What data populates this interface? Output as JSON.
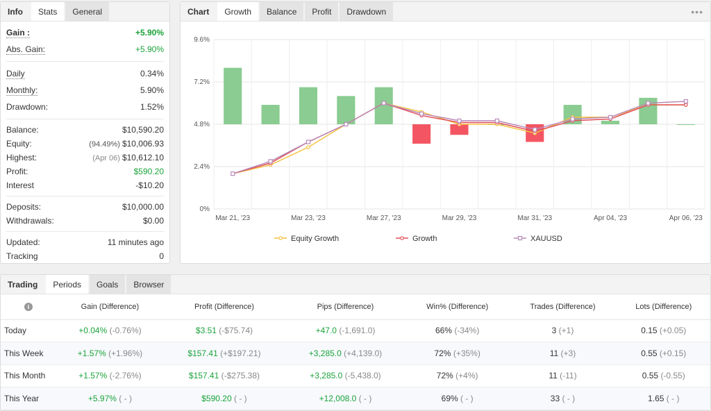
{
  "info_panel": {
    "tabs": [
      "Info",
      "Stats",
      "General"
    ],
    "rows_a": [
      {
        "label": "Gain :",
        "value": "+5.90%"
      },
      {
        "label": "Abs. Gain:",
        "value": "+5.90%"
      }
    ],
    "rows_b": [
      {
        "label": "Daily",
        "value": "0.34%"
      },
      {
        "label": "Monthly:",
        "value": "5.90%"
      },
      {
        "label": "Drawdown:",
        "value": "1.52%"
      }
    ],
    "rows_c": [
      {
        "label": "Balance:",
        "sub": "",
        "value": "$10,590.20"
      },
      {
        "label": "Equity:",
        "sub": "(94.49%)",
        "value": "$10,006.93"
      },
      {
        "label": "Highest:",
        "sub": "(Apr 06)",
        "value": "$10,612.10"
      },
      {
        "label": "Profit:",
        "sub": "",
        "value": "$590.20"
      },
      {
        "label": "Interest",
        "sub": "",
        "value": "-$10.20"
      }
    ],
    "rows_d": [
      {
        "label": "Deposits:",
        "value": "$10,000.00"
      },
      {
        "label": "Withdrawals:",
        "value": "$0.00"
      }
    ],
    "rows_e": [
      {
        "label": "Updated:",
        "value": "11 minutes ago"
      },
      {
        "label": "Tracking",
        "value": "0"
      }
    ]
  },
  "chart_panel": {
    "tabs": [
      "Chart",
      "Growth",
      "Balance",
      "Profit",
      "Drawdown"
    ],
    "more": "•••"
  },
  "chart_data": {
    "type": "line",
    "x": [
      "Mar 21, '23",
      "Mar 22, '23",
      "Mar 23, '23",
      "Mar 24, '23",
      "Mar 27, '23",
      "Mar 28, '23",
      "Mar 29, '23",
      "Mar 30, '23",
      "Mar 31, '23",
      "Apr 03, '23",
      "Apr 04, '23",
      "Apr 05, '23",
      "Apr 06, '23"
    ],
    "x_tick_labels": [
      "Mar 21, '23",
      "Mar 23, '23",
      "Mar 27, '23",
      "Mar 29, '23",
      "Mar 31, '23",
      "Apr 04, '23",
      "Apr 06, '23"
    ],
    "y_tick_labels": [
      "0%",
      "2.4%",
      "4.8%",
      "7.2%",
      "9.6%"
    ],
    "ylim": [
      0,
      9.6
    ],
    "bars": [
      8.0,
      5.9,
      6.9,
      6.4,
      6.9,
      3.7,
      4.2,
      4.8,
      3.8,
      5.9,
      5.0,
      6.3,
      4.8
    ],
    "bars_base": 4.8,
    "series": [
      {
        "name": "Equity Growth",
        "color": "#f5c242",
        "values": [
          2.0,
          2.5,
          3.5,
          4.8,
          6.0,
          5.5,
          4.8,
          4.8,
          4.3,
          5.2,
          5.2,
          5.9,
          5.9
        ]
      },
      {
        "name": "Growth",
        "color": "#e0505a",
        "values": [
          2.0,
          2.6,
          3.8,
          4.8,
          6.0,
          5.3,
          4.9,
          4.9,
          4.4,
          5.0,
          5.1,
          5.9,
          5.9
        ]
      },
      {
        "name": "XAUUSD",
        "color": "#b98ab8",
        "values": [
          2.0,
          2.7,
          3.8,
          4.8,
          6.0,
          5.4,
          5.0,
          5.0,
          4.5,
          5.1,
          5.2,
          6.0,
          6.1
        ]
      }
    ],
    "grid": true,
    "legend": "bottom"
  },
  "trading_panel": {
    "tabs": [
      "Trading",
      "Periods",
      "Goals",
      "Browser"
    ],
    "headers": [
      "Gain (Difference)",
      "Profit (Difference)",
      "Pips (Difference)",
      "Win% (Difference)",
      "Trades (Difference)",
      "Lots (Difference)"
    ],
    "rows": [
      {
        "period": "Today",
        "gain": "+0.04%",
        "gain_d": "(-0.76%)",
        "profit": "$3.51",
        "profit_d": "(-$75.74)",
        "pips": "+47.0",
        "pips_d": "(-1,691.0)",
        "win": "66%",
        "win_d": "(-34%)",
        "trades": "3",
        "trades_d": "(+1)",
        "lots": "0.15",
        "lots_d": "(+0.05)"
      },
      {
        "period": "This Week",
        "gain": "+1.57%",
        "gain_d": "(+1.96%)",
        "profit": "$157.41",
        "profit_d": "(+$197.21)",
        "pips": "+3,285.0",
        "pips_d": "(+4,139.0)",
        "win": "72%",
        "win_d": "(+35%)",
        "trades": "11",
        "trades_d": "(+3)",
        "lots": "0.55",
        "lots_d": "(+0.15)"
      },
      {
        "period": "This Month",
        "gain": "+1.57%",
        "gain_d": "(-2.76%)",
        "profit": "$157.41",
        "profit_d": "(-$275.38)",
        "pips": "+3,285.0",
        "pips_d": "(-5,438.0)",
        "win": "72%",
        "win_d": "(+4%)",
        "trades": "11",
        "trades_d": "(-11)",
        "lots": "0.55",
        "lots_d": "(-0.55)"
      },
      {
        "period": "This Year",
        "gain": "+5.97%",
        "gain_d": "( - )",
        "profit": "$590.20",
        "profit_d": "( - )",
        "pips": "+12,008.0",
        "pips_d": "( - )",
        "win": "69%",
        "win_d": "( - )",
        "trades": "33",
        "trades_d": "( - )",
        "lots": "1.65",
        "lots_d": "( - )"
      }
    ]
  }
}
